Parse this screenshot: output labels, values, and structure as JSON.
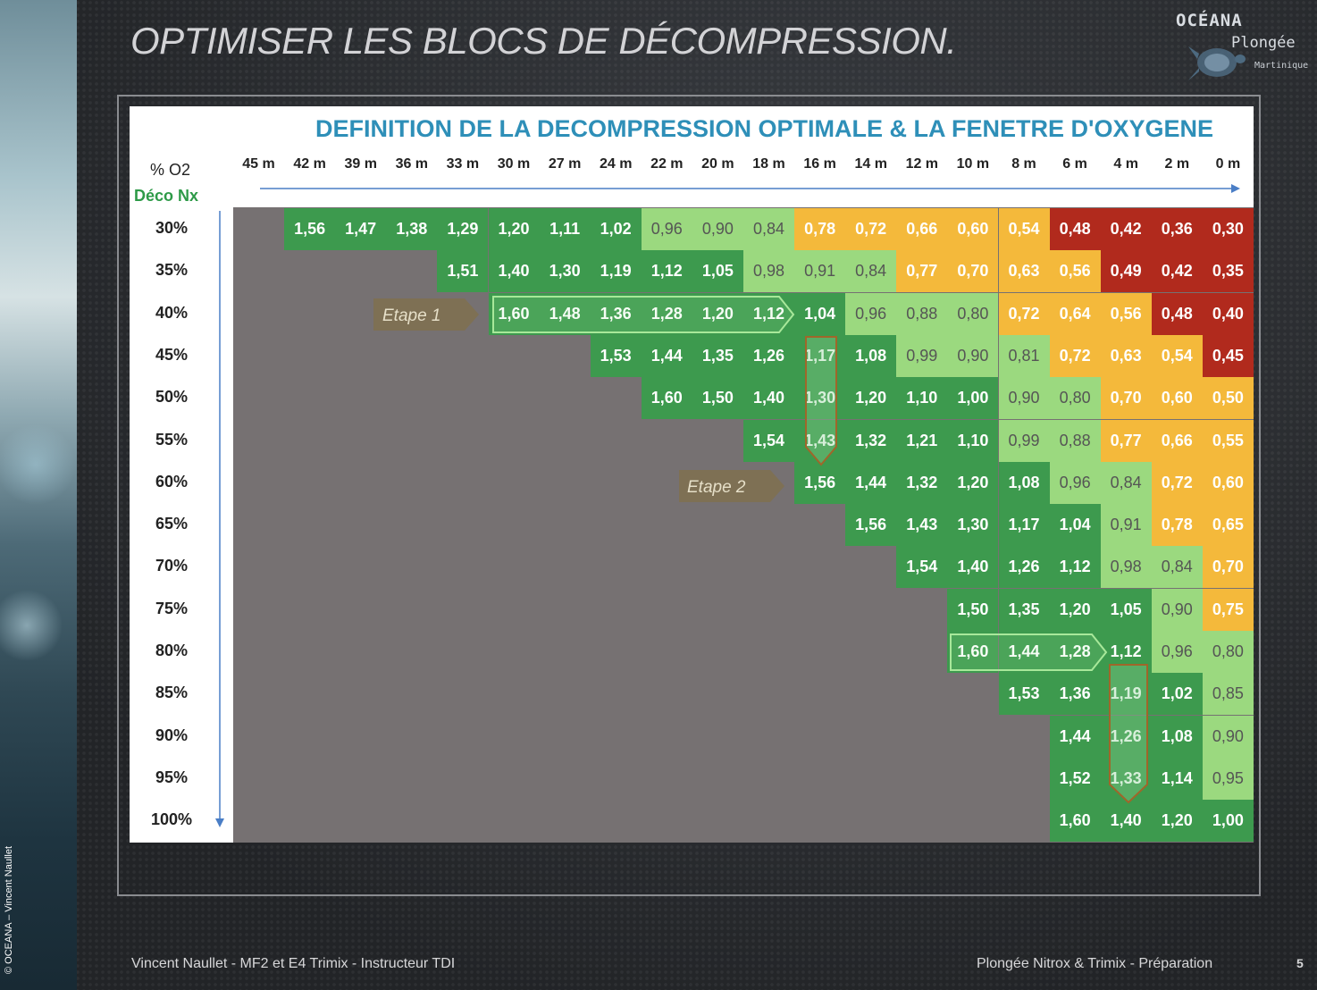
{
  "slide": {
    "title": "OPTIMISER LES BLOCS DE DÉCOMPRESSION.",
    "copyright": "© OCEANA – Vincent Naullet",
    "footer_left": "Vincent Naullet - MF2 et E4 Trimix - Instructeur TDI",
    "footer_right": "Plongée Nitrox & Trimix - Préparation",
    "page_number": "5"
  },
  "logo": {
    "line1": "OCÉANA",
    "line2": "Plongée",
    "line3": "Martinique"
  },
  "table": {
    "title": "DEFINITION DE LA DECOMPRESSION OPTIMALE & LA FENETRE D'OXYGENE",
    "o2_label": "% O2",
    "deco_label": "Déco Nx",
    "etape1": "Etape 1",
    "etape2": "Etape 2",
    "colors": {
      "dark_green": "#3d9a4e",
      "light_green": "#9bd97f",
      "orange": "#f4b93b",
      "red": "#b12a1d",
      "grey": "#767172",
      "title_blue": "#2e8fb8"
    },
    "depths": [
      "45 m",
      "42 m",
      "39 m",
      "36 m",
      "33 m",
      "30 m",
      "27 m",
      "24 m",
      "22 m",
      "20 m",
      "18 m",
      "16 m",
      "14 m",
      "12 m",
      "10 m",
      "8 m",
      "6 m",
      "4 m",
      "2 m",
      "0 m"
    ],
    "rows": [
      {
        "label": "30%",
        "start": 1,
        "values": [
          "1,56",
          "1,47",
          "1,38",
          "1,29",
          "1,20",
          "1,11",
          "1,02",
          "0,96",
          "0,90",
          "0,84",
          "0,78",
          "0,72",
          "0,66",
          "0,60",
          "0,54",
          "0,48",
          "0,42",
          "0,36",
          "0,30"
        ]
      },
      {
        "label": "35%",
        "start": 4,
        "values": [
          "1,51",
          "1,40",
          "1,30",
          "1,19",
          "1,12",
          "1,05",
          "0,98",
          "0,91",
          "0,84",
          "0,77",
          "0,70",
          "0,63",
          "0,56",
          "0,49",
          "0,42",
          "0,35"
        ]
      },
      {
        "label": "40%",
        "start": 5,
        "values": [
          "1,60",
          "1,48",
          "1,36",
          "1,28",
          "1,20",
          "1,12",
          "1,04",
          "0,96",
          "0,88",
          "0,80",
          "0,72",
          "0,64",
          "0,56",
          "0,48",
          "0,40"
        ]
      },
      {
        "label": "45%",
        "start": 7,
        "values": [
          "1,53",
          "1,44",
          "1,35",
          "1,26",
          "1,17",
          "1,08",
          "0,99",
          "0,90",
          "0,81",
          "0,72",
          "0,63",
          "0,54",
          "0,45"
        ]
      },
      {
        "label": "50%",
        "start": 8,
        "values": [
          "1,60",
          "1,50",
          "1,40",
          "1,30",
          "1,20",
          "1,10",
          "1,00",
          "0,90",
          "0,80",
          "0,70",
          "0,60",
          "0,50"
        ]
      },
      {
        "label": "55%",
        "start": 10,
        "values": [
          "1,54",
          "1,43",
          "1,32",
          "1,21",
          "1,10",
          "0,99",
          "0,88",
          "0,77",
          "0,66",
          "0,55"
        ]
      },
      {
        "label": "60%",
        "start": 11,
        "values": [
          "1,56",
          "1,44",
          "1,32",
          "1,20",
          "1,08",
          "0,96",
          "0,84",
          "0,72",
          "0,60"
        ]
      },
      {
        "label": "65%",
        "start": 12,
        "values": [
          "1,56",
          "1,43",
          "1,30",
          "1,17",
          "1,04",
          "0,91",
          "0,78",
          "0,65"
        ]
      },
      {
        "label": "70%",
        "start": 13,
        "values": [
          "1,54",
          "1,40",
          "1,26",
          "1,12",
          "0,98",
          "0,84",
          "0,70"
        ]
      },
      {
        "label": "75%",
        "start": 14,
        "values": [
          "1,50",
          "1,35",
          "1,20",
          "1,05",
          "0,90",
          "0,75"
        ]
      },
      {
        "label": "80%",
        "start": 14,
        "values": [
          "1,60",
          "1,44",
          "1,28",
          "1,12",
          "0,96",
          "0,80"
        ]
      },
      {
        "label": "85%",
        "start": 15,
        "values": [
          "1,53",
          "1,36",
          "1,19",
          "1,02",
          "0,85"
        ]
      },
      {
        "label": "90%",
        "start": 16,
        "values": [
          "1,44",
          "1,26",
          "1,08",
          "0,90"
        ]
      },
      {
        "label": "95%",
        "start": 16,
        "values": [
          "1,52",
          "1,33",
          "1,14",
          "0,95"
        ]
      },
      {
        "label": "100%",
        "start": 16,
        "values": [
          "1,60",
          "1,40",
          "1,20",
          "1,00"
        ]
      }
    ]
  }
}
